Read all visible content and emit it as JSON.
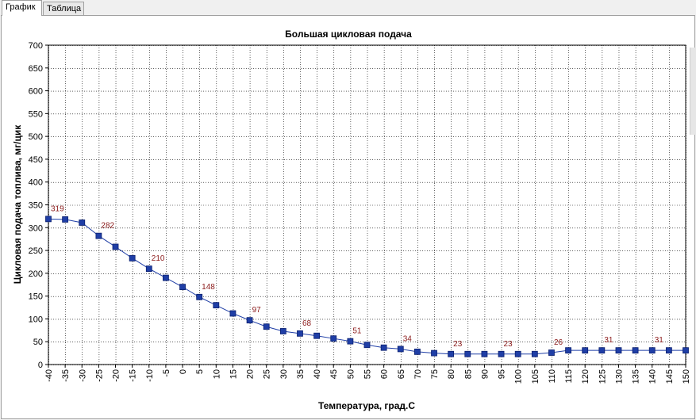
{
  "tabs": [
    {
      "label": "График",
      "active": true
    },
    {
      "label": "Таблица",
      "active": false
    }
  ],
  "chart_data": {
    "type": "line",
    "title": "Большая цикловая подача",
    "xlabel": "Температура, град.С",
    "ylabel": "Цикловая подача топлива, мг/цик",
    "xlim": [
      -40,
      150
    ],
    "ylim": [
      0,
      700
    ],
    "x_ticks": [
      -40,
      -35,
      -30,
      -25,
      -20,
      -15,
      -10,
      -5,
      0,
      5,
      10,
      15,
      20,
      25,
      30,
      35,
      40,
      45,
      50,
      55,
      60,
      65,
      70,
      75,
      80,
      85,
      90,
      95,
      100,
      105,
      110,
      115,
      120,
      125,
      130,
      135,
      140,
      145,
      150
    ],
    "y_ticks": [
      0,
      50,
      100,
      150,
      200,
      250,
      300,
      350,
      400,
      450,
      500,
      550,
      600,
      650,
      700
    ],
    "grid": true,
    "series": [
      {
        "color": "#1f3ea6",
        "marker": "square",
        "x": [
          -40,
          -35,
          -30,
          -25,
          -20,
          -15,
          -10,
          -5,
          0,
          5,
          10,
          15,
          20,
          25,
          30,
          35,
          40,
          45,
          50,
          55,
          60,
          65,
          70,
          75,
          80,
          85,
          90,
          95,
          100,
          105,
          110,
          115,
          120,
          125,
          130,
          135,
          140,
          145,
          150
        ],
        "y": [
          319,
          318,
          311,
          282,
          258,
          233,
          210,
          190,
          170,
          148,
          130,
          112,
          97,
          83,
          73,
          68,
          63,
          57,
          51,
          43,
          37,
          34,
          28,
          25,
          23,
          23,
          23,
          23,
          23,
          23,
          26,
          31,
          31,
          31,
          31,
          31,
          31,
          31,
          31
        ]
      }
    ],
    "data_labels": [
      {
        "x": -40,
        "text": "319"
      },
      {
        "x": -25,
        "text": "282"
      },
      {
        "x": -10,
        "text": "210"
      },
      {
        "x": 5,
        "text": "148"
      },
      {
        "x": 20,
        "text": "97"
      },
      {
        "x": 35,
        "text": "68"
      },
      {
        "x": 50,
        "text": "51"
      },
      {
        "x": 65,
        "text": "34"
      },
      {
        "x": 80,
        "text": "23"
      },
      {
        "x": 95,
        "text": "23"
      },
      {
        "x": 110,
        "text": "26"
      },
      {
        "x": 125,
        "text": "31"
      },
      {
        "x": 140,
        "text": "31"
      }
    ]
  }
}
